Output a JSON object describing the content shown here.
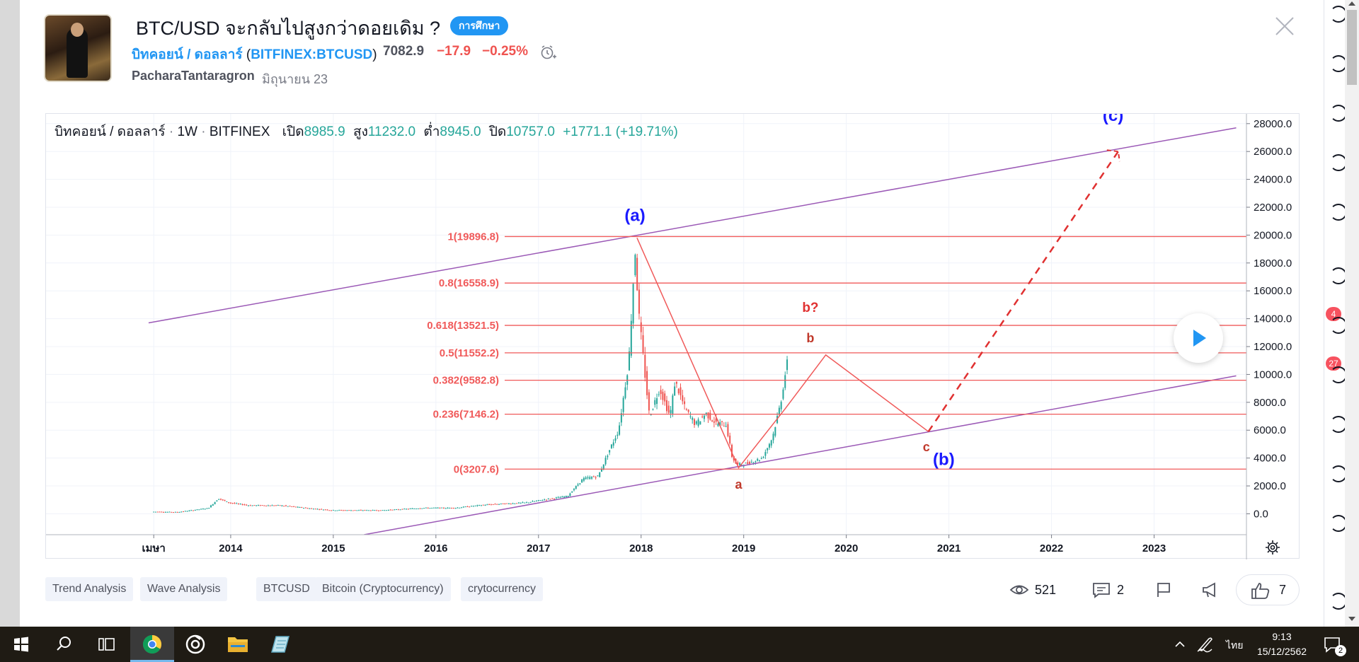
{
  "idea": {
    "title": "BTC/USD จะกลับไปสูงกว่าดอยเดิม ?",
    "badge": "การศึกษา",
    "symbol_name": "บิทคอยน์ / ดอลลาร์",
    "symbol_paren_open": " (",
    "symbol_ticker": "BITFINEX:BTCUSD",
    "symbol_paren_close": ")",
    "price": "7082.9",
    "change": "−17.9",
    "change_pct": "−0.25%",
    "author": "PacharaTantaragron",
    "date": "มิถุนายน 23"
  },
  "chart_header": {
    "symbol": "บิทคอยน์ / ดอลลาร์",
    "sep1": " · ",
    "interval": "1W",
    "sep2": " · ",
    "exchange": "BITFINEX",
    "open_label": "เปิด",
    "open": "8985.9",
    "high_label": "สูง",
    "high": "11232.0",
    "low_label": "ต่ำ",
    "low": "8945.0",
    "close_label": "ปิด",
    "close": "10757.0",
    "chg": "+1771.1 (+19.71%)"
  },
  "chart_data": {
    "type": "candlestick",
    "y_axis_ticks": [
      "28000.0",
      "26000.0",
      "24000.0",
      "22000.0",
      "20000.0",
      "18000.0",
      "16000.0",
      "14000.0",
      "12000.0",
      "10000.0",
      "8000.0",
      "6000.0",
      "4000.0",
      "2000.0",
      "0.0"
    ],
    "ylim": [
      -1500,
      28700
    ],
    "x_axis_ticks": [
      "เมษา",
      "2014",
      "2015",
      "2016",
      "2017",
      "2018",
      "2019",
      "2020",
      "2021",
      "2022",
      "2023"
    ],
    "x_tick_years": [
      2013.25,
      2014,
      2015,
      2016,
      2017,
      2018,
      2019,
      2020,
      2021,
      2022,
      2023
    ],
    "xlim": [
      2012.2,
      2023.9
    ],
    "price_path": [
      [
        2013.25,
        150
      ],
      [
        2013.5,
        120
      ],
      [
        2013.8,
        400
      ],
      [
        2013.9,
        1100
      ],
      [
        2014.0,
        800
      ],
      [
        2014.2,
        600
      ],
      [
        2014.5,
        600
      ],
      [
        2014.8,
        380
      ],
      [
        2015.0,
        260
      ],
      [
        2015.5,
        250
      ],
      [
        2015.9,
        420
      ],
      [
        2016.2,
        420
      ],
      [
        2016.5,
        650
      ],
      [
        2016.9,
        800
      ],
      [
        2017.1,
        1050
      ],
      [
        2017.3,
        1250
      ],
      [
        2017.45,
        2500
      ],
      [
        2017.6,
        2700
      ],
      [
        2017.7,
        4400
      ],
      [
        2017.8,
        6000
      ],
      [
        2017.9,
        11000
      ],
      [
        2017.96,
        19000
      ],
      [
        2018.0,
        14000
      ],
      [
        2018.05,
        10500
      ],
      [
        2018.1,
        7000
      ],
      [
        2018.2,
        9000
      ],
      [
        2018.3,
        7000
      ],
      [
        2018.35,
        9500
      ],
      [
        2018.45,
        7500
      ],
      [
        2018.55,
        6400
      ],
      [
        2018.65,
        7200
      ],
      [
        2018.75,
        6500
      ],
      [
        2018.85,
        6400
      ],
      [
        2018.9,
        4200
      ],
      [
        2018.95,
        3500
      ],
      [
        2019.05,
        3600
      ],
      [
        2019.2,
        4000
      ],
      [
        2019.3,
        5500
      ],
      [
        2019.38,
        8000
      ],
      [
        2019.44,
        10800
      ]
    ],
    "fib_levels": [
      {
        "label": "1(19896.8)",
        "value": 19896.8
      },
      {
        "label": "0.8(16558.9)",
        "value": 16558.9
      },
      {
        "label": "0.618(13521.5)",
        "value": 13521.5
      },
      {
        "label": "0.5(11552.2)",
        "value": 11552.2
      },
      {
        "label": "0.382(9582.8)",
        "value": 9582.8
      },
      {
        "label": "0.236(7146.2)",
        "value": 7146.2
      },
      {
        "label": "0(3207.6)",
        "value": 3207.6
      }
    ],
    "channel_upper": [
      [
        2013.2,
        13700
      ],
      [
        2023.8,
        27700
      ]
    ],
    "channel_lower": [
      [
        2015.3,
        -1500
      ],
      [
        2023.8,
        9900
      ]
    ],
    "wave_path": [
      [
        2017.96,
        19800
      ],
      [
        2018.95,
        3300
      ],
      [
        2019.4,
        7500
      ],
      [
        2019.8,
        11400
      ],
      [
        2020.8,
        5900
      ]
    ],
    "projection": [
      [
        2020.8,
        5900
      ],
      [
        2022.65,
        26000
      ]
    ],
    "annotations": [
      {
        "text": "(a)",
        "x": 2017.94,
        "y": 21000,
        "color": "#1a1aff",
        "size": 24
      },
      {
        "text": "(c)",
        "x": 2022.6,
        "y": 28200,
        "color": "#1a1aff",
        "size": 24
      },
      {
        "text": "(b)",
        "x": 2020.95,
        "y": 3500,
        "color": "#1a1aff",
        "size": 24
      },
      {
        "text": "b?",
        "x": 2019.65,
        "y": 14500,
        "color": "#e03131",
        "size": 19
      },
      {
        "text": "b",
        "x": 2019.65,
        "y": 12300,
        "color": "#c0392b",
        "size": 18
      },
      {
        "text": "c",
        "x": 2020.78,
        "y": 4500,
        "color": "#c0392b",
        "size": 18
      },
      {
        "text": "a",
        "x": 2018.95,
        "y": 1800,
        "color": "#c0392b",
        "size": 18
      }
    ],
    "colors": {
      "up": "#26a69a",
      "down": "#ef5350",
      "fib": "#f05a5a",
      "channel": "#9b59b6",
      "wave": "#f05a5a"
    }
  },
  "tags": [
    "Trend Analysis",
    "Wave Analysis",
    "BTCUSD",
    "Bitcoin (Cryptocurrency)",
    "crytocurrency"
  ],
  "stats": {
    "views": "521",
    "comments": "2",
    "likes": "7"
  },
  "rail_badges": [
    "4",
    "27"
  ],
  "taskbar": {
    "lang": "ไทย",
    "time": "9:13",
    "date": "15/12/2562",
    "notifications": "2"
  }
}
